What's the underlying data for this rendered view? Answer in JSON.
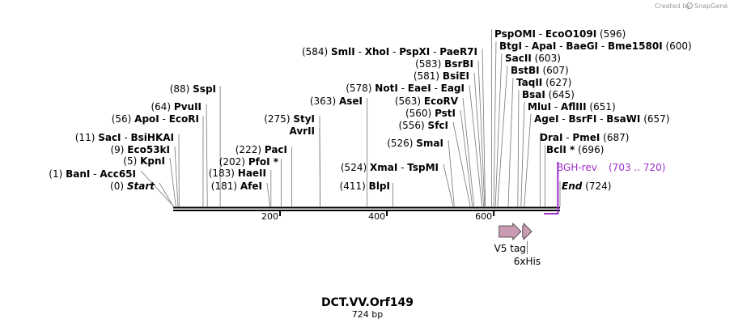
{
  "watermark": "Created by",
  "brand": "SnapGene",
  "title": "DCT.VV.Orf149",
  "length_label": "724 bp",
  "sequence_length": 724,
  "scale_ticks": [
    {
      "value": 200,
      "label": "200"
    },
    {
      "value": 400,
      "label": "400"
    },
    {
      "value": 600,
      "label": "600"
    }
  ],
  "primer": {
    "name": "BGH-rev",
    "range": "(703 .. 720)",
    "start": 703,
    "end": 720,
    "color": "#9b30c8"
  },
  "features": [
    {
      "name": "V5 tag",
      "start": 610,
      "end": 651,
      "type": "arrow",
      "color": "#c99ab2"
    },
    {
      "name": "6xHis",
      "start": 654,
      "end": 671,
      "type": "arrow",
      "color": "#c99ab2"
    }
  ],
  "sites": [
    {
      "pos": 0,
      "pos_label": "(0)",
      "parts": [
        "Start"
      ],
      "italic": true
    },
    {
      "pos": 1,
      "pos_label": "(1)",
      "parts": [
        "BanI",
        "Acc65I"
      ]
    },
    {
      "pos": 5,
      "pos_label": "(5)",
      "parts": [
        "KpnI"
      ]
    },
    {
      "pos": 9,
      "pos_label": "(9)",
      "parts": [
        "Eco53kI"
      ]
    },
    {
      "pos": 11,
      "pos_label": "(11)",
      "parts": [
        "SacI",
        "BsiHKAI"
      ]
    },
    {
      "pos": 56,
      "pos_label": "(56)",
      "parts": [
        "ApoI",
        "EcoRI"
      ]
    },
    {
      "pos": 64,
      "pos_label": "(64)",
      "parts": [
        "PvuII"
      ]
    },
    {
      "pos": 88,
      "pos_label": "(88)",
      "parts": [
        "SspI"
      ]
    },
    {
      "pos": 181,
      "pos_label": "(181)",
      "parts": [
        "AfeI"
      ]
    },
    {
      "pos": 183,
      "pos_label": "(183)",
      "parts": [
        "HaeII"
      ]
    },
    {
      "pos": 202,
      "pos_label": "(202)",
      "parts": [
        "PfoI *"
      ]
    },
    {
      "pos": 222,
      "pos_label": "(222)",
      "parts": [
        "PacI"
      ]
    },
    {
      "pos": 275,
      "pos_label": "(275)",
      "parts": [
        "StyI"
      ]
    },
    {
      "pos": 275,
      "pos_label": "",
      "parts": [
        "AvrII"
      ]
    },
    {
      "pos": 363,
      "pos_label": "(363)",
      "parts": [
        "AseI"
      ]
    },
    {
      "pos": 411,
      "pos_label": "(411)",
      "parts": [
        "BlpI"
      ]
    },
    {
      "pos": 524,
      "pos_label": "(524)",
      "parts": [
        "XmaI",
        "TspMI"
      ]
    },
    {
      "pos": 526,
      "pos_label": "(526)",
      "parts": [
        "SmaI"
      ]
    },
    {
      "pos": 556,
      "pos_label": "(556)",
      "parts": [
        "SfcI"
      ]
    },
    {
      "pos": 560,
      "pos_label": "(560)",
      "parts": [
        "PstI"
      ]
    },
    {
      "pos": 563,
      "pos_label": "(563)",
      "parts": [
        "EcoRV"
      ]
    },
    {
      "pos": 578,
      "pos_label": "(578)",
      "parts": [
        "NotI",
        "EaeI",
        "EagI"
      ]
    },
    {
      "pos": 581,
      "pos_label": "(581)",
      "parts": [
        "BsiEI"
      ]
    },
    {
      "pos": 583,
      "pos_label": "(583)",
      "parts": [
        "BsrBI"
      ]
    },
    {
      "pos": 584,
      "pos_label": "(584)",
      "parts": [
        "SmlI",
        "XhoI",
        "PspXI",
        "PaeR7I"
      ]
    },
    {
      "pos": 596,
      "pos_label": "(596)",
      "parts": [
        "PspOMI",
        "EcoO109I"
      ]
    },
    {
      "pos": 600,
      "pos_label": "(600)",
      "parts": [
        "BtgI",
        "ApaI",
        "BaeGI",
        "Bme1580I"
      ]
    },
    {
      "pos": 603,
      "pos_label": "(603)",
      "parts": [
        "SacII"
      ]
    },
    {
      "pos": 607,
      "pos_label": "(607)",
      "parts": [
        "BstBI"
      ]
    },
    {
      "pos": 627,
      "pos_label": "(627)",
      "parts": [
        "TaqII"
      ]
    },
    {
      "pos": 645,
      "pos_label": "(645)",
      "parts": [
        "BsaI"
      ]
    },
    {
      "pos": 651,
      "pos_label": "(651)",
      "parts": [
        "MluI",
        "AflIII"
      ]
    },
    {
      "pos": 657,
      "pos_label": "(657)",
      "parts": [
        "AgeI",
        "BsrFI",
        "BsaWI"
      ]
    },
    {
      "pos": 687,
      "pos_label": "(687)",
      "parts": [
        "DraI",
        "PmeI"
      ]
    },
    {
      "pos": 696,
      "pos_label": "(696)",
      "parts": [
        "BclI *"
      ]
    },
    {
      "pos": 724,
      "pos_label": "(724)",
      "parts": [
        "End"
      ],
      "italic": true
    }
  ]
}
